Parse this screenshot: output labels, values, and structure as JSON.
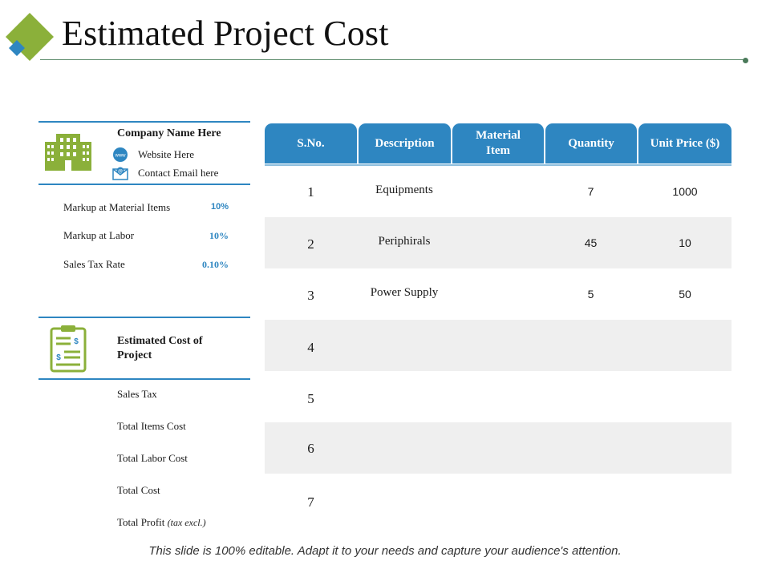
{
  "title": "Estimated Project Cost",
  "colors": {
    "accent_blue": "#2e86c1",
    "accent_green": "#8bb03a",
    "icon_blue": "#2e86c1"
  },
  "company": {
    "name": "Company Name Here",
    "website": "Website Here",
    "email": "Contact Email here",
    "website_icon_text": "www",
    "email_icon_text": "@"
  },
  "markups": [
    {
      "label": "Markup at Material Items",
      "value": "10%"
    },
    {
      "label": "Markup at Labor",
      "value": "10%"
    },
    {
      "label": "Sales Tax Rate",
      "value": "0.10%"
    }
  ],
  "estimate": {
    "title": "Estimated Cost of Project",
    "items": [
      "Sales Tax",
      "Total Items Cost",
      "Total Labor Cost",
      "Total Cost"
    ],
    "profit_label": "Total Profit",
    "profit_note": "(tax excl.)"
  },
  "table": {
    "headers": [
      "S.No.",
      "Description",
      "Material Item",
      "Quantity",
      "Unit Price ($)"
    ],
    "rows": [
      {
        "sno": "1",
        "description": "Equipments",
        "material": "",
        "quantity": "7",
        "unit_price": "1000"
      },
      {
        "sno": "2",
        "description": "Periphirals",
        "material": "",
        "quantity": "45",
        "unit_price": "10"
      },
      {
        "sno": "3",
        "description": "Power Supply",
        "material": "",
        "quantity": "5",
        "unit_price": "50"
      },
      {
        "sno": "4",
        "description": "",
        "material": "",
        "quantity": "",
        "unit_price": ""
      },
      {
        "sno": "5",
        "description": "",
        "material": "",
        "quantity": "",
        "unit_price": ""
      },
      {
        "sno": "6",
        "description": "",
        "material": "",
        "quantity": "",
        "unit_price": ""
      },
      {
        "sno": "7",
        "description": "",
        "material": "",
        "quantity": "",
        "unit_price": ""
      }
    ]
  },
  "footer": "This slide is 100% editable. Adapt it to your needs and capture your audience's attention."
}
